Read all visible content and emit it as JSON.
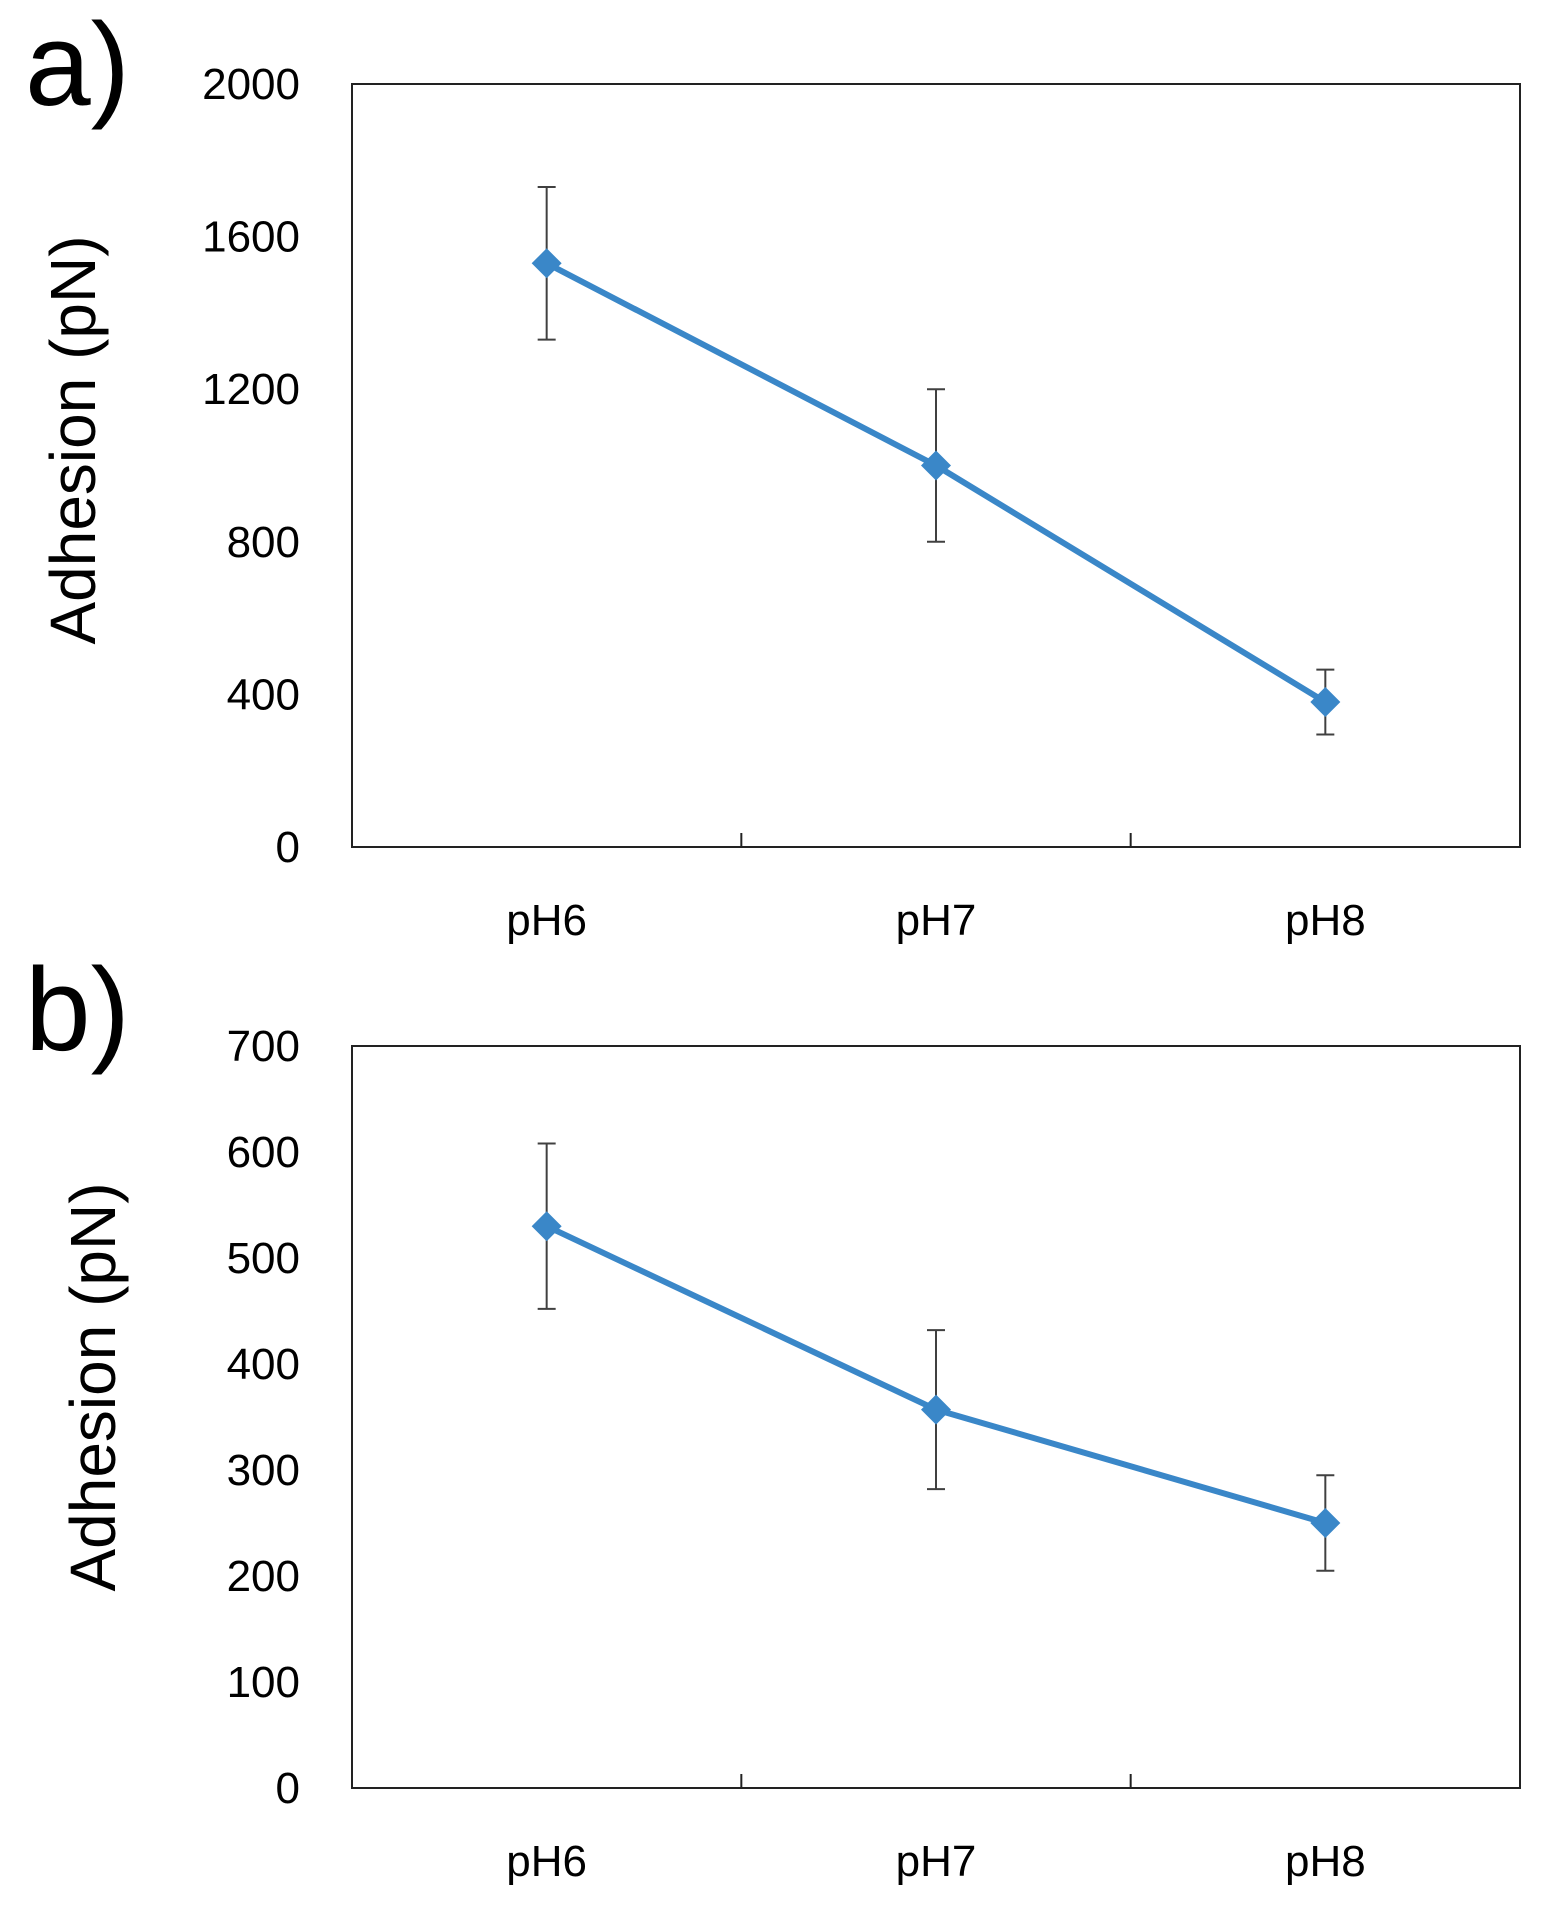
{
  "chart_data": [
    {
      "panel_label": "a)",
      "type": "line",
      "categories": [
        "pH6",
        "pH7",
        "pH8"
      ],
      "series": [
        {
          "name": "Adhesion",
          "values": [
            1530,
            1000,
            380
          ],
          "errors": [
            200,
            200,
            85
          ]
        }
      ],
      "ylabel": "Adhesion (pN)",
      "xlabel": "",
      "ylim": [
        0,
        2000
      ],
      "yticks": [
        "0",
        "400",
        "800",
        "1200",
        "1600",
        "2000"
      ],
      "grid": false,
      "color": "#3a87c8",
      "errorbar_color": "#404040"
    },
    {
      "panel_label": "b)",
      "type": "line",
      "categories": [
        "pH6",
        "pH7",
        "pH8"
      ],
      "series": [
        {
          "name": "Adhesion",
          "values": [
            530,
            357,
            250
          ],
          "errors": [
            78,
            75,
            45
          ]
        }
      ],
      "ylabel": "Adhesion (pN)",
      "xlabel": "",
      "ylim": [
        0,
        700
      ],
      "yticks": [
        "0",
        "100",
        "200",
        "300",
        "400",
        "500",
        "600",
        "700"
      ],
      "grid": false,
      "color": "#3a87c8",
      "errorbar_color": "#404040"
    }
  ]
}
